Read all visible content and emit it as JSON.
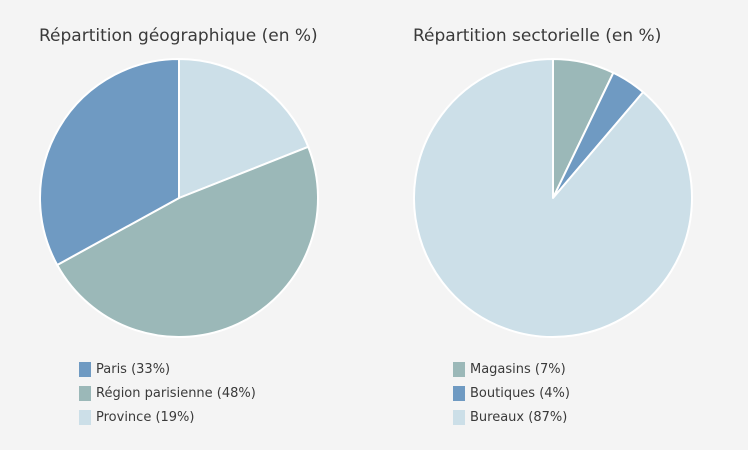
{
  "chart_data": [
    {
      "type": "pie",
      "title": "Répartition géographique (en %)",
      "slices": [
        {
          "label": "Paris (33%)",
          "value": 33,
          "color": "#6f9ac2"
        },
        {
          "label": "Région parisienne (48%)",
          "value": 48,
          "color": "#9bb8b8"
        },
        {
          "label": "Province (19%)",
          "value": 19,
          "color": "#ccdfe8"
        }
      ],
      "start_angle_deg": 0,
      "direction": "clockwise-display-order: Province, Région parisienne, Paris",
      "legend": "bottom"
    },
    {
      "type": "pie",
      "title": "Répartition sectorielle (en %)",
      "slices": [
        {
          "label": "Magasins (7%)",
          "value": 7,
          "color": "#9bb8b8"
        },
        {
          "label": "Boutiques (4%)",
          "value": 4,
          "color": "#6f9ac2"
        },
        {
          "label": "Bureaux (87%)",
          "value": 87,
          "color": "#ccdfe8"
        }
      ],
      "start_angle_deg": 0,
      "direction": "clockwise",
      "legend": "bottom"
    }
  ]
}
